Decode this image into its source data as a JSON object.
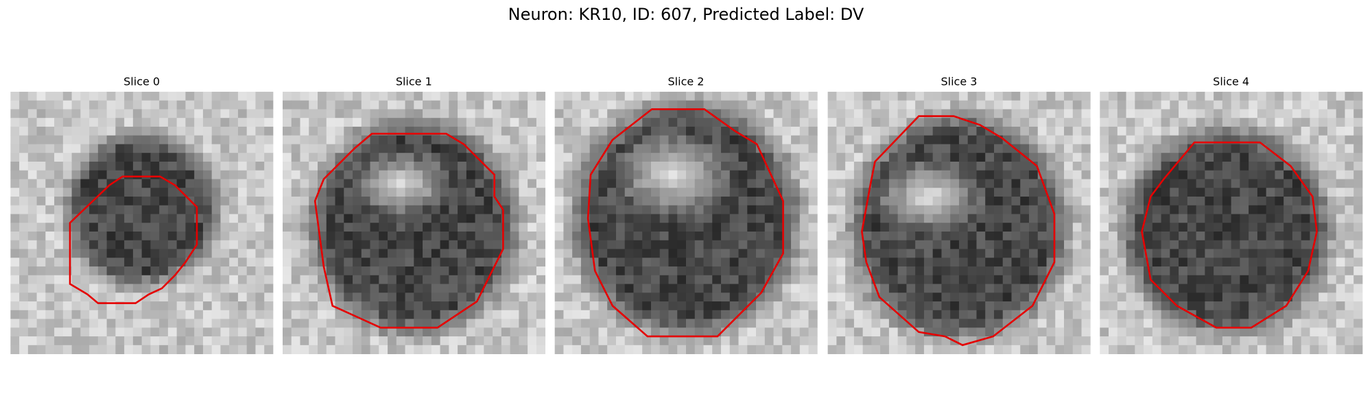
{
  "title": "Neuron: KR10, ID: 607, Predicted Label: DV",
  "panels": [
    {
      "title": "Slice 0"
    },
    {
      "title": "Slice 1"
    },
    {
      "title": "Slice 2"
    },
    {
      "title": "Slice 3"
    },
    {
      "title": "Slice 4"
    }
  ]
}
